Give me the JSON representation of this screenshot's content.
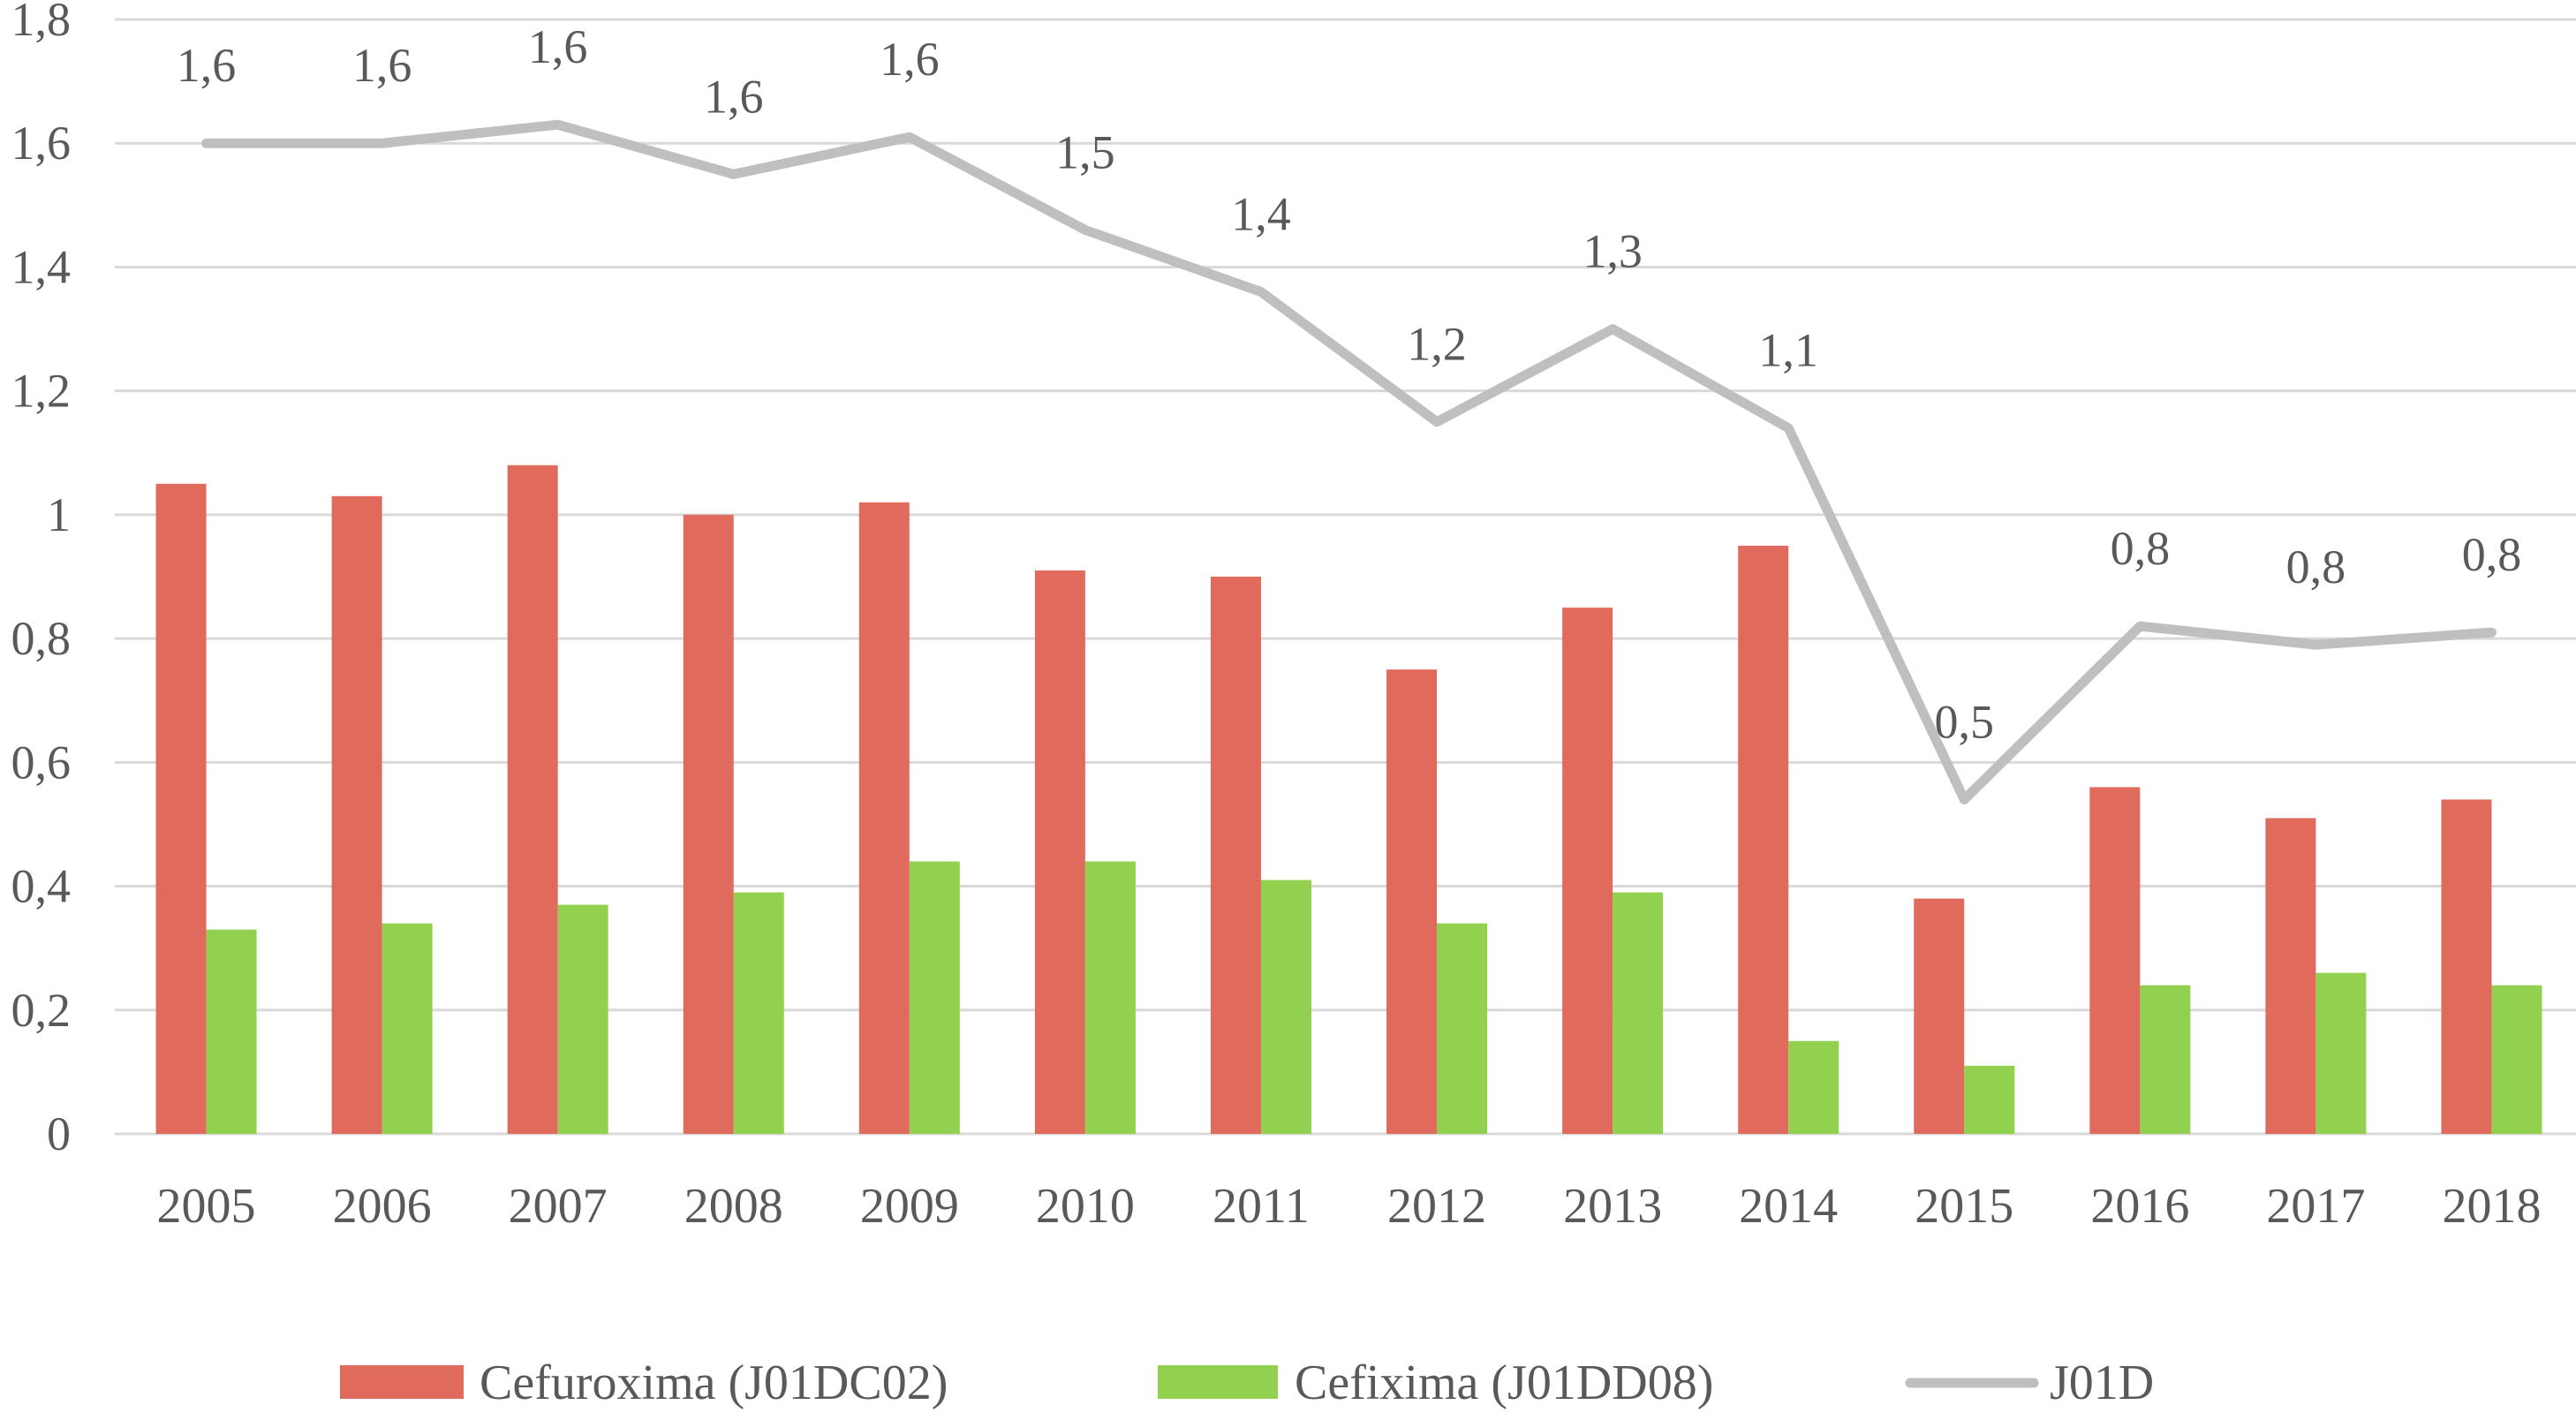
{
  "chart_data": {
    "type": "bar",
    "title": "",
    "xlabel": "",
    "ylabel": "",
    "ylim": [
      0,
      1.8
    ],
    "yticks": [
      "0",
      "0,2",
      "0,4",
      "0,6",
      "0,8",
      "1",
      "1,2",
      "1,4",
      "1,6",
      "1,8"
    ],
    "grid": true,
    "legend_position": "bottom",
    "categories": [
      "2005",
      "2006",
      "2007",
      "2008",
      "2009",
      "2010",
      "2011",
      "2012",
      "2013",
      "2014",
      "2015",
      "2016",
      "2017",
      "2018"
    ],
    "series": [
      {
        "name": "Cefuroxima (J01DC02)",
        "type": "bar",
        "color": "#e06b5c",
        "values": [
          1.05,
          1.03,
          1.08,
          1.0,
          1.02,
          0.91,
          0.9,
          0.75,
          0.85,
          0.95,
          0.38,
          0.56,
          0.51,
          0.54
        ]
      },
      {
        "name": "Cefixima (J01DD08)",
        "type": "bar",
        "color": "#92d050",
        "values": [
          0.33,
          0.34,
          0.37,
          0.39,
          0.44,
          0.44,
          0.41,
          0.34,
          0.39,
          0.15,
          0.11,
          0.24,
          0.26,
          0.24
        ]
      },
      {
        "name": "J01D",
        "type": "line",
        "color": "#bfbfbf",
        "values": [
          1.6,
          1.6,
          1.63,
          1.55,
          1.61,
          1.46,
          1.36,
          1.15,
          1.3,
          1.14,
          0.54,
          0.82,
          0.79,
          0.81
        ],
        "labels": [
          "1,6",
          "1,6",
          "1,6",
          "1,6",
          "1,6",
          "1,5",
          "1,4",
          "1,2",
          "1,3",
          "1,1",
          "0,5",
          "0,8",
          "0,8",
          "0,8"
        ]
      }
    ]
  }
}
